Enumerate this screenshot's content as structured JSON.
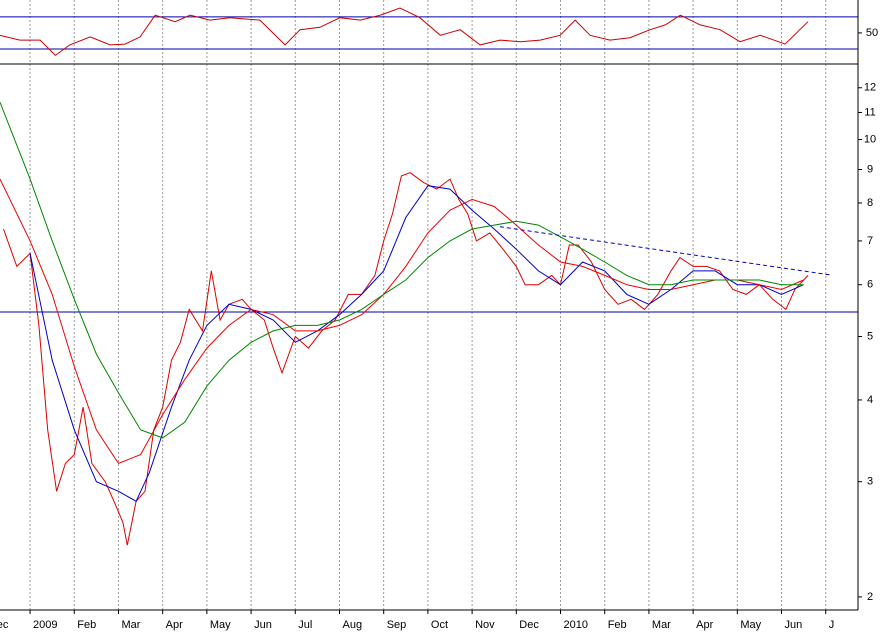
{
  "chart_data": [
    {
      "type": "line",
      "ylim": [
        12.5,
        91
      ],
      "yticks": [
        50
      ],
      "levels": [
        30,
        70
      ],
      "level_color": "#0000aa",
      "grid": true,
      "series": [
        {
          "color": "#cc0000",
          "x": [
            0.32,
            0.77,
            1.23,
            1.57,
            1.9,
            2.36,
            2.81,
            3.15,
            3.49,
            3.83,
            4.28,
            4.62,
            5.07,
            5.52,
            6.2,
            6.77,
            7.11,
            7.56,
            8.01,
            8.47,
            8.92,
            9.37,
            9.82,
            10.28,
            10.73,
            11.18,
            11.63,
            12.09,
            12.54,
            12.99,
            13.33,
            13.67,
            14.12,
            14.57,
            15.03,
            15.37,
            15.71,
            16.16,
            16.61,
            17.06,
            17.52,
            18.08,
            18.6
          ],
          "values": [
            47,
            41,
            41,
            22,
            35,
            45,
            35,
            36,
            45,
            72,
            64,
            72,
            66,
            69,
            66,
            35,
            54,
            57,
            69,
            66,
            72,
            81,
            69,
            47,
            54,
            35,
            41,
            39,
            41,
            47,
            66,
            47,
            41,
            44,
            54,
            60,
            72,
            60,
            54,
            39,
            47,
            36,
            64
          ]
        }
      ]
    },
    {
      "type": "line",
      "log_scale": true,
      "grid": true,
      "xlim": [
        0.32,
        19.73
      ],
      "ylim": [
        1.91,
        13
      ],
      "xticks": [
        {
          "value": 0,
          "label": "Dec"
        },
        {
          "value": 1,
          "label": "2009"
        },
        {
          "value": 2,
          "label": "Feb"
        },
        {
          "value": 3,
          "label": "Mar"
        },
        {
          "value": 4,
          "label": "Apr"
        },
        {
          "value": 5,
          "label": "May"
        },
        {
          "value": 6,
          "label": "Jun"
        },
        {
          "value": 7,
          "label": "Jul"
        },
        {
          "value": 8,
          "label": "Aug"
        },
        {
          "value": 9,
          "label": "Sep"
        },
        {
          "value": 10,
          "label": "Oct"
        },
        {
          "value": 11,
          "label": "Nov"
        },
        {
          "value": 12,
          "label": "Dec"
        },
        {
          "value": 13,
          "label": "2010"
        },
        {
          "value": 14,
          "label": "Feb"
        },
        {
          "value": 15,
          "label": "Mar"
        },
        {
          "value": 16,
          "label": "Apr"
        },
        {
          "value": 17,
          "label": "May"
        },
        {
          "value": 18,
          "label": "Jun"
        },
        {
          "value": 19,
          "label": "J"
        }
      ],
      "yticks": [
        2,
        3,
        4,
        5,
        6,
        7,
        8,
        9,
        10,
        11,
        12
      ],
      "support": 5.45,
      "support_color": "#0000aa",
      "trendline": {
        "x": [
          11.63,
          19.1
        ],
        "values": [
          7.36,
          6.21
        ],
        "color": "#0000cc"
      },
      "series": [
        {
          "color": "#dd0000",
          "x": [
            0.4,
            0.7,
            1.0,
            1.2,
            1.4,
            1.6,
            1.8,
            2.0,
            2.2,
            2.4,
            2.7,
            2.9,
            3.1,
            3.2,
            3.4,
            3.6,
            3.8,
            4.0,
            4.2,
            4.4,
            4.6,
            4.9,
            5.1,
            5.3,
            5.5,
            5.8,
            6.0,
            6.3,
            6.5,
            6.7,
            7.0,
            7.3,
            7.6,
            7.9,
            8.2,
            8.5,
            8.8,
            9.0,
            9.2,
            9.4,
            9.6,
            9.9,
            10.2,
            10.5,
            10.7,
            10.9,
            11.1,
            11.4,
            11.7,
            12.0,
            12.2,
            12.5,
            12.8,
            13.0,
            13.2,
            13.4,
            13.7,
            14.0,
            14.3,
            14.6,
            14.9,
            15.2,
            15.5,
            15.7,
            16.0,
            16.3,
            16.6,
            16.9,
            17.2,
            17.5,
            17.8,
            18.1,
            18.3,
            18.6
          ],
          "values": [
            7.3,
            6.4,
            6.7,
            5.2,
            3.6,
            2.9,
            3.2,
            3.3,
            3.9,
            3.2,
            3.0,
            2.8,
            2.6,
            2.4,
            2.8,
            2.9,
            3.6,
            3.9,
            4.6,
            4.9,
            5.5,
            5.1,
            6.3,
            5.3,
            5.6,
            5.7,
            5.5,
            5.3,
            4.8,
            4.4,
            5.0,
            4.8,
            5.1,
            5.3,
            5.8,
            5.8,
            6.2,
            7.0,
            7.7,
            8.8,
            8.9,
            8.6,
            8.4,
            8.7,
            8.1,
            7.7,
            7.0,
            7.2,
            6.8,
            6.4,
            6.0,
            6.0,
            6.2,
            6.0,
            6.9,
            6.9,
            6.5,
            5.9,
            5.6,
            5.7,
            5.5,
            5.8,
            6.3,
            6.6,
            6.4,
            6.4,
            6.3,
            5.9,
            5.8,
            6.0,
            5.7,
            5.5,
            5.9,
            6.2
          ]
        },
        {
          "color": "#0000cc",
          "x": [
            1.0,
            1.5,
            2.0,
            2.5,
            3.0,
            3.4,
            3.7,
            4.2,
            4.6,
            5.0,
            5.5,
            6.0,
            6.5,
            7.0,
            7.5,
            8.0,
            8.5,
            9.0,
            9.5,
            10.0,
            10.5,
            11.0,
            11.5,
            12.0,
            12.5,
            13.0,
            13.5,
            14.0,
            14.5,
            15.0,
            15.5,
            16.0,
            16.5,
            17.0,
            17.5,
            18.0,
            18.5
          ],
          "values": [
            6.7,
            4.6,
            3.6,
            3.0,
            2.9,
            2.8,
            3.1,
            3.9,
            4.6,
            5.2,
            5.6,
            5.5,
            5.3,
            4.9,
            5.1,
            5.4,
            5.8,
            6.3,
            7.6,
            8.5,
            8.4,
            7.8,
            7.3,
            6.8,
            6.3,
            6.0,
            6.5,
            6.3,
            5.8,
            5.6,
            5.9,
            6.3,
            6.3,
            6.0,
            6.0,
            5.8,
            6.0
          ]
        },
        {
          "color": "#ee0000",
          "x": [
            0.32,
            1.0,
            1.5,
            2.0,
            2.5,
            3.0,
            3.5,
            4.0,
            4.5,
            5.0,
            5.5,
            6.0,
            6.5,
            7.0,
            7.5,
            8.0,
            8.5,
            9.0,
            9.5,
            10.0,
            10.5,
            11.0,
            11.5,
            12.0,
            12.5,
            13.0,
            13.5,
            14.0,
            14.5,
            15.0,
            15.5,
            16.0,
            16.5,
            17.0,
            17.5,
            18.0,
            18.5
          ],
          "values": [
            8.7,
            7.0,
            5.8,
            4.5,
            3.6,
            3.2,
            3.3,
            3.8,
            4.3,
            4.8,
            5.2,
            5.5,
            5.4,
            5.1,
            5.1,
            5.2,
            5.4,
            5.8,
            6.4,
            7.2,
            7.8,
            8.1,
            7.9,
            7.4,
            6.9,
            6.5,
            6.4,
            6.2,
            6.0,
            5.9,
            5.9,
            6.0,
            6.1,
            6.1,
            6.0,
            5.9,
            6.1
          ]
        },
        {
          "color": "#008800",
          "x": [
            0.32,
            1.0,
            1.5,
            2.0,
            2.5,
            3.0,
            3.5,
            4.0,
            4.5,
            5.0,
            5.5,
            6.0,
            6.5,
            7.0,
            7.5,
            8.0,
            8.5,
            9.0,
            9.5,
            10.0,
            10.5,
            11.0,
            11.5,
            12.0,
            12.5,
            13.0,
            13.5,
            14.0,
            14.5,
            15.0,
            15.5,
            16.0,
            16.5,
            17.0,
            17.5,
            18.0,
            18.5
          ],
          "values": [
            11.4,
            8.7,
            7.0,
            5.7,
            4.7,
            4.1,
            3.6,
            3.5,
            3.7,
            4.2,
            4.6,
            4.9,
            5.1,
            5.2,
            5.2,
            5.3,
            5.5,
            5.8,
            6.1,
            6.6,
            7.0,
            7.3,
            7.4,
            7.5,
            7.4,
            7.1,
            6.8,
            6.5,
            6.2,
            6.0,
            6.0,
            6.1,
            6.1,
            6.1,
            6.1,
            6.0,
            6.0
          ]
        }
      ]
    }
  ]
}
